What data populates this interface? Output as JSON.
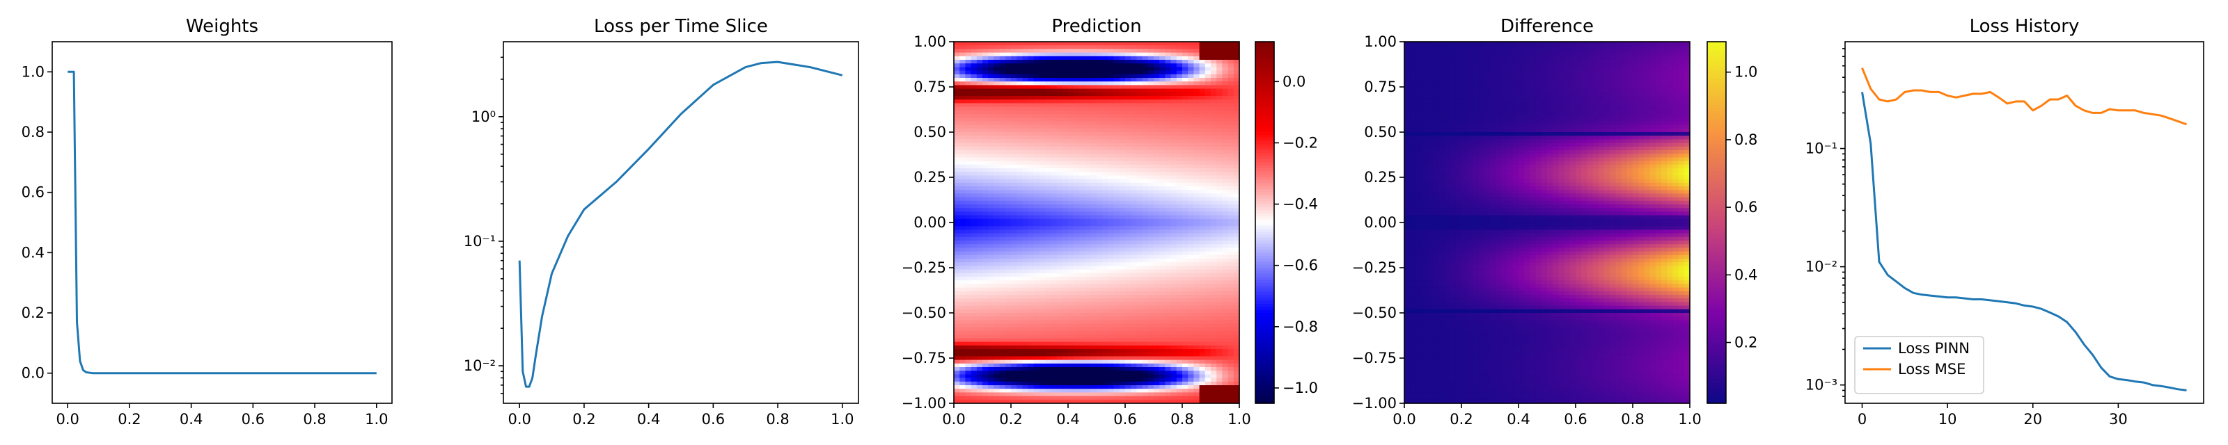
{
  "chart_data": [
    {
      "id": "weights",
      "type": "line",
      "title": "Weights",
      "xlim": [
        -0.05,
        1.05
      ],
      "ylim": [
        -0.1,
        1.1
      ],
      "xticks": [
        0.0,
        0.2,
        0.4,
        0.6,
        0.8,
        1.0
      ],
      "xtick_labels": [
        "0.0",
        "0.2",
        "0.4",
        "0.6",
        "0.8",
        "1.0"
      ],
      "yticks": [
        0.0,
        0.2,
        0.4,
        0.6,
        0.8,
        1.0
      ],
      "ytick_labels": [
        "0.0",
        "0.2",
        "0.4",
        "0.6",
        "0.8",
        "1.0"
      ],
      "series": [
        {
          "color": "#1f77b4",
          "x": [
            0.0,
            0.01,
            0.02,
            0.03,
            0.04,
            0.05,
            0.06,
            0.08,
            0.1,
            0.2,
            0.4,
            0.6,
            0.8,
            1.0
          ],
          "y": [
            1.0,
            1.0,
            1.0,
            0.17,
            0.04,
            0.01,
            0.003,
            0.0,
            0.0,
            0.0,
            0.0,
            0.0,
            0.0,
            0.0
          ]
        }
      ]
    },
    {
      "id": "loss-slice",
      "type": "line",
      "title": "Loss per Time Slice",
      "yscale": "log",
      "xlim": [
        -0.05,
        1.05
      ],
      "ylim": [
        0.005,
        4.0
      ],
      "xticks": [
        0.0,
        0.2,
        0.4,
        0.6,
        0.8,
        1.0
      ],
      "xtick_labels": [
        "0.0",
        "0.2",
        "0.4",
        "0.6",
        "0.8",
        "1.0"
      ],
      "yticks": [
        0.01,
        0.1,
        1.0
      ],
      "ytick_labels": [
        "10⁻²",
        "10⁻¹",
        "10⁰"
      ],
      "series": [
        {
          "color": "#1f77b4",
          "x": [
            0.0,
            0.01,
            0.02,
            0.03,
            0.04,
            0.05,
            0.07,
            0.1,
            0.15,
            0.2,
            0.3,
            0.4,
            0.5,
            0.6,
            0.7,
            0.75,
            0.8,
            0.9,
            1.0
          ],
          "y": [
            0.07,
            0.009,
            0.0068,
            0.0068,
            0.008,
            0.012,
            0.025,
            0.055,
            0.11,
            0.18,
            0.3,
            0.55,
            1.05,
            1.8,
            2.5,
            2.7,
            2.75,
            2.5,
            2.15
          ]
        }
      ]
    },
    {
      "id": "prediction",
      "type": "heatmap",
      "title": "Prediction",
      "colormap": "seismic",
      "xlim": [
        0.0,
        1.0
      ],
      "ylim": [
        -1.0,
        1.0
      ],
      "xticks": [
        0.0,
        0.2,
        0.4,
        0.6,
        0.8,
        1.0
      ],
      "xtick_labels": [
        "0.0",
        "0.2",
        "0.4",
        "0.6",
        "0.8",
        "1.0"
      ],
      "yticks": [
        -1.0,
        -0.75,
        -0.5,
        -0.25,
        0.0,
        0.25,
        0.5,
        0.75,
        1.0
      ],
      "ytick_labels": [
        "−1.00",
        "−0.75",
        "−0.50",
        "−0.25",
        "0.00",
        "0.25",
        "0.50",
        "0.75",
        "1.00"
      ],
      "colorbar": {
        "range": [
          -1.05,
          0.13
        ],
        "ticks": [
          0.0,
          -0.2,
          -0.4,
          -0.6,
          -0.8,
          -1.0
        ],
        "tick_labels": [
          "0.0",
          "−0.2",
          "−0.4",
          "−0.6",
          "−0.8",
          "−1.0"
        ]
      }
    },
    {
      "id": "difference",
      "type": "heatmap",
      "title": "Difference",
      "colormap": "plasma",
      "xlim": [
        0.0,
        1.0
      ],
      "ylim": [
        -1.0,
        1.0
      ],
      "xticks": [
        0.0,
        0.2,
        0.4,
        0.6,
        0.8,
        1.0
      ],
      "xtick_labels": [
        "0.0",
        "0.2",
        "0.4",
        "0.6",
        "0.8",
        "1.0"
      ],
      "yticks": [
        -1.0,
        -0.75,
        -0.5,
        -0.25,
        0.0,
        0.25,
        0.5,
        0.75,
        1.0
      ],
      "ytick_labels": [
        "−1.00",
        "−0.75",
        "−0.50",
        "−0.25",
        "0.00",
        "0.25",
        "0.50",
        "0.75",
        "1.00"
      ],
      "colorbar": {
        "range": [
          0.02,
          1.09
        ],
        "ticks": [
          0.2,
          0.4,
          0.6,
          0.8,
          1.0
        ],
        "tick_labels": [
          "0.2",
          "0.4",
          "0.6",
          "0.8",
          "1.0"
        ]
      }
    },
    {
      "id": "loss-history",
      "type": "line",
      "title": "Loss History",
      "yscale": "log",
      "xlim": [
        -2.0,
        40.0
      ],
      "ylim": [
        0.0007,
        0.8
      ],
      "xticks": [
        0,
        10,
        20,
        30
      ],
      "xtick_labels": [
        "0",
        "10",
        "20",
        "30"
      ],
      "yticks": [
        0.001,
        0.01,
        0.1
      ],
      "ytick_labels": [
        "10⁻³",
        "10⁻²",
        "10⁻¹"
      ],
      "legend_position": "lower-left",
      "series": [
        {
          "name": "Loss PINN",
          "color": "#1f77b4",
          "x": [
            0,
            1,
            2,
            3,
            4,
            5,
            6,
            7,
            8,
            9,
            10,
            11,
            12,
            13,
            14,
            15,
            16,
            17,
            18,
            19,
            20,
            21,
            22,
            23,
            24,
            25,
            26,
            27,
            28,
            29,
            30,
            31,
            32,
            33,
            34,
            35,
            36,
            37,
            38
          ],
          "y": [
            0.3,
            0.11,
            0.011,
            0.0085,
            0.0075,
            0.0066,
            0.006,
            0.0058,
            0.0057,
            0.0056,
            0.0055,
            0.0055,
            0.0054,
            0.0053,
            0.0053,
            0.0052,
            0.0051,
            0.005,
            0.0049,
            0.0047,
            0.0046,
            0.0044,
            0.0041,
            0.0038,
            0.0034,
            0.0028,
            0.0022,
            0.0018,
            0.0014,
            0.00118,
            0.00112,
            0.0011,
            0.00107,
            0.00105,
            0.001,
            0.00098,
            0.00095,
            0.00092,
            0.0009
          ]
        },
        {
          "name": "Loss MSE",
          "color": "#ff7f0e",
          "x": [
            0,
            1,
            2,
            3,
            4,
            5,
            6,
            7,
            8,
            9,
            10,
            11,
            12,
            13,
            14,
            15,
            16,
            17,
            18,
            19,
            20,
            21,
            22,
            23,
            24,
            25,
            26,
            27,
            28,
            29,
            30,
            31,
            32,
            33,
            34,
            35,
            36,
            37,
            38
          ],
          "y": [
            0.48,
            0.32,
            0.26,
            0.25,
            0.26,
            0.3,
            0.31,
            0.31,
            0.3,
            0.3,
            0.28,
            0.27,
            0.28,
            0.29,
            0.29,
            0.3,
            0.27,
            0.24,
            0.25,
            0.25,
            0.21,
            0.23,
            0.26,
            0.26,
            0.28,
            0.23,
            0.21,
            0.2,
            0.2,
            0.215,
            0.21,
            0.21,
            0.21,
            0.2,
            0.195,
            0.19,
            0.18,
            0.17,
            0.16
          ]
        }
      ]
    }
  ]
}
